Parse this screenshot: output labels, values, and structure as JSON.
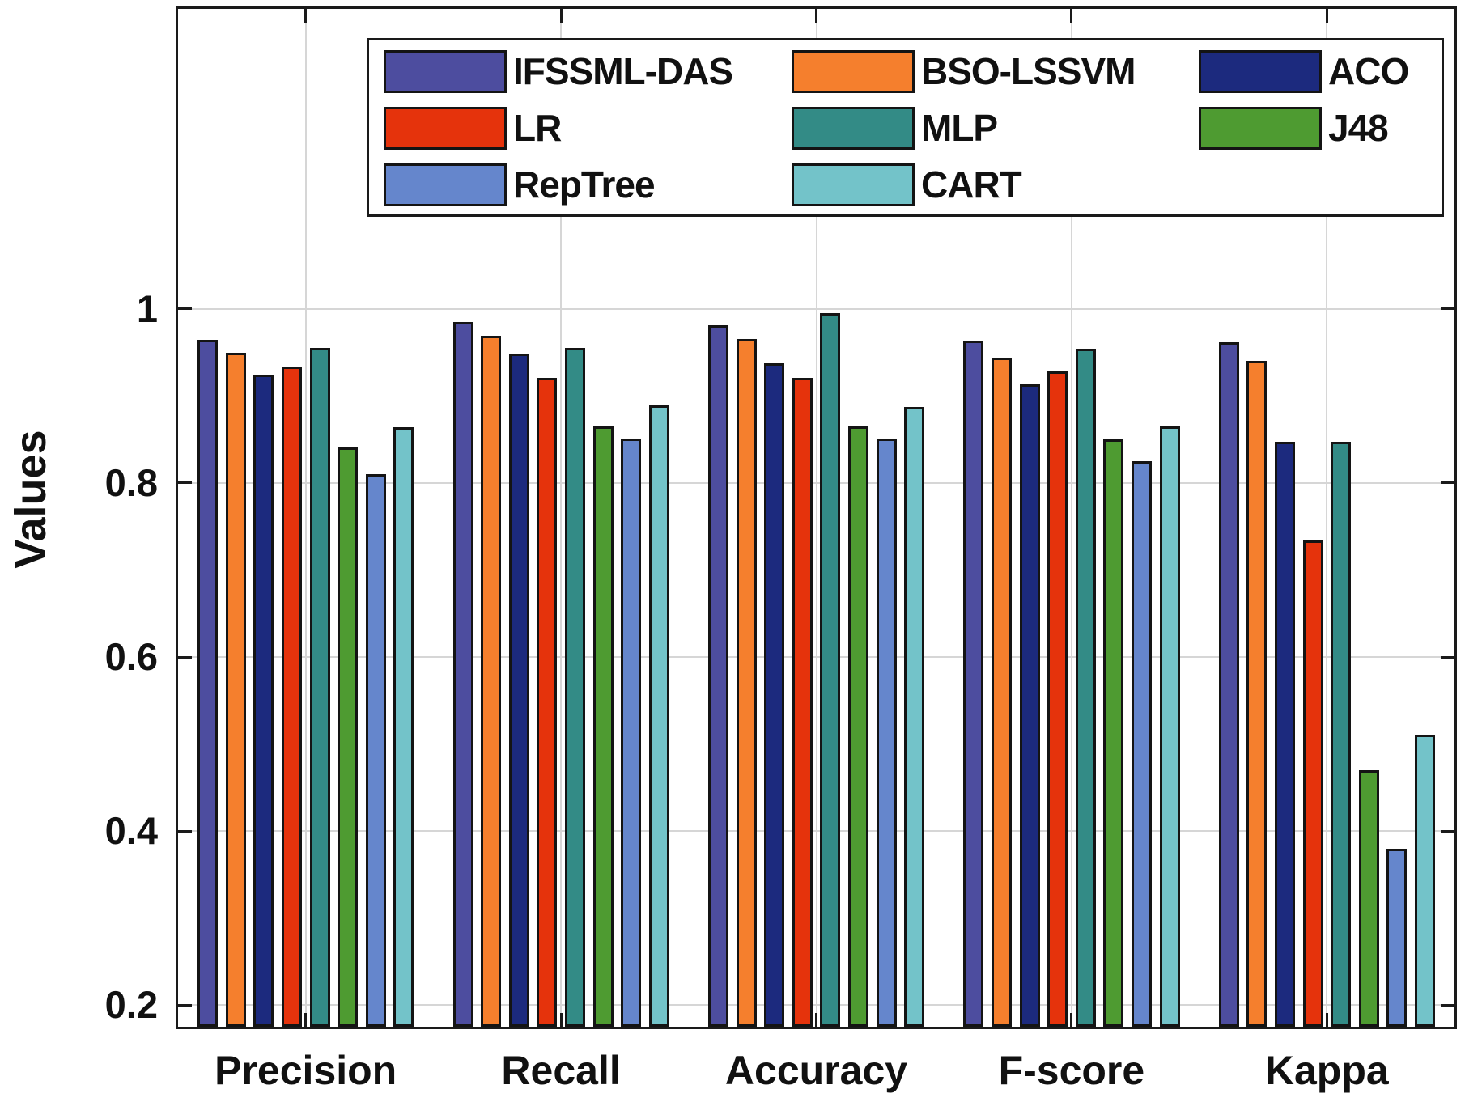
{
  "chart_data": {
    "type": "bar",
    "title": "",
    "xlabel": "",
    "ylabel": "Values",
    "categories": [
      "Precision",
      "Recall",
      "Accuracy",
      "F-score",
      "Kappa"
    ],
    "series": [
      {
        "name": "IFSSML-DAS",
        "color": "#4D4D9F",
        "values": [
          0.965,
          0.985,
          0.981,
          0.964,
          0.962
        ]
      },
      {
        "name": "BSO-LSSVM",
        "color": "#F57F2D",
        "values": [
          0.95,
          0.969,
          0.966,
          0.944,
          0.94
        ]
      },
      {
        "name": "ACO",
        "color": "#1C2A7E",
        "values": [
          0.925,
          0.949,
          0.938,
          0.913,
          0.847
        ]
      },
      {
        "name": "LR",
        "color": "#E5330C",
        "values": [
          0.934,
          0.921,
          0.921,
          0.928,
          0.734
        ]
      },
      {
        "name": "MLP",
        "color": "#338B86",
        "values": [
          0.955,
          0.955,
          0.995,
          0.954,
          0.847
        ]
      },
      {
        "name": "J48",
        "color": "#4E9B31",
        "values": [
          0.841,
          0.865,
          0.865,
          0.85,
          0.47
        ]
      },
      {
        "name": "RepTree",
        "color": "#6586CC",
        "values": [
          0.81,
          0.851,
          0.851,
          0.825,
          0.38
        ]
      },
      {
        "name": "CART",
        "color": "#73C3C9",
        "values": [
          0.864,
          0.889,
          0.887,
          0.865,
          0.511
        ]
      }
    ],
    "yticks": [
      "1",
      "0.8",
      "0.6",
      "0.4",
      "0.2"
    ],
    "ytick_values": [
      1.0,
      0.8,
      0.6,
      0.4,
      0.2
    ],
    "ylim": [
      0.175,
      1.345
    ],
    "grid": true,
    "legend_position": "top-inside",
    "legend_rows": [
      [
        "IFSSML-DAS",
        "BSO-LSSVM",
        "ACO"
      ],
      [
        "LR",
        "MLP",
        "J48"
      ],
      [
        "RepTree",
        "CART"
      ]
    ],
    "colors": {
      "axis": "#1a1a1a",
      "gridline": "#d6d6d6",
      "background": "#ffffff"
    }
  }
}
